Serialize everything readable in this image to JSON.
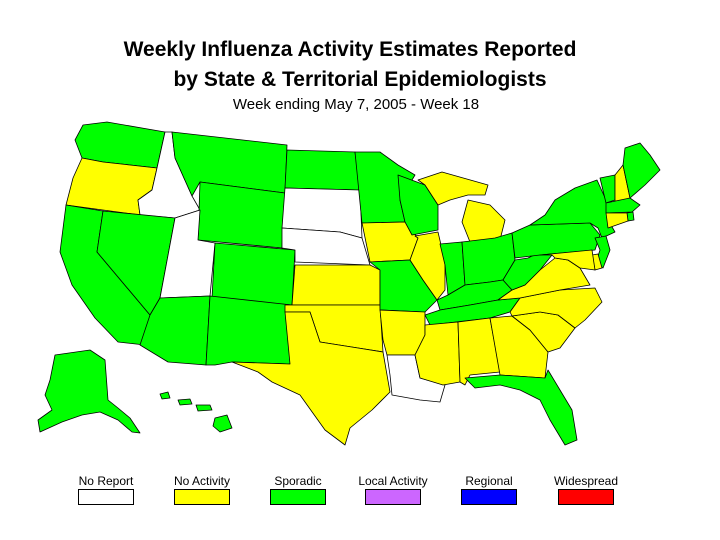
{
  "title_line1": "Weekly Influenza Activity Estimates Reported",
  "title_line2": "by State & Territorial Epidemiologists",
  "subtitle": "Week ending May 7, 2005 - Week 18",
  "legend": [
    {
      "label": "No Report",
      "color": "#ffffff"
    },
    {
      "label": "No Activity",
      "color": "#ffff00"
    },
    {
      "label": "Sporadic",
      "color": "#00ff00"
    },
    {
      "label": "Local Activity",
      "color": "#cc66ff"
    },
    {
      "label": "Regional",
      "color": "#0000ff"
    },
    {
      "label": "Widespread",
      "color": "#ff0000"
    }
  ],
  "states": {
    "WA": "Sporadic",
    "OR": "No Activity",
    "ID": "No Report",
    "MT": "Sporadic",
    "WY": "Sporadic",
    "CA": "Sporadic",
    "NV": "Sporadic",
    "UT": "No Report",
    "AZ": "Sporadic",
    "CO": "Sporadic",
    "NM": "Sporadic",
    "ND": "Sporadic",
    "SD": "No Report",
    "NE": "No Report",
    "KS": "No Activity",
    "OK": "No Activity",
    "TX": "No Activity",
    "MN": "Sporadic",
    "IA": "No Activity",
    "MO": "Sporadic",
    "AR": "No Activity",
    "LA": "No Report",
    "WI": "Sporadic",
    "IL": "No Activity",
    "MI": "No Activity",
    "IN": "Sporadic",
    "OH": "Sporadic",
    "KY": "Sporadic",
    "TN": "Sporadic",
    "MS": "No Activity",
    "AL": "No Activity",
    "GA": "No Activity",
    "FL": "Sporadic",
    "SC": "No Activity",
    "NC": "No Activity",
    "VA": "No Activity",
    "WV": "Sporadic",
    "PA": "Sporadic",
    "NY": "Sporadic",
    "VT": "Sporadic",
    "NH": "No Activity",
    "ME": "Sporadic",
    "MA": "Sporadic",
    "RI": "Sporadic",
    "CT": "No Activity",
    "NJ": "Sporadic",
    "DE": "No Activity",
    "MD": "No Activity",
    "AK": "Sporadic",
    "HI": "Sporadic"
  }
}
